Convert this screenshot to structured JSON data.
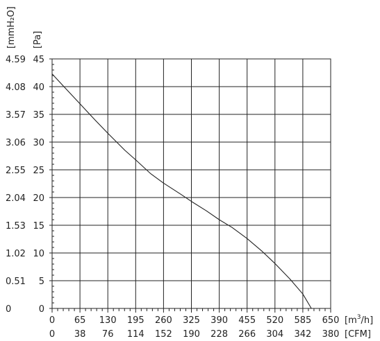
{
  "chart_data": {
    "type": "line",
    "title": "",
    "x_axis_primary": {
      "unit": "[m³/h]",
      "unit_base": "[m",
      "unit_sup": "3",
      "unit_tail": "/h]",
      "ticks": [
        "0",
        "65",
        "130",
        "195",
        "260",
        "325",
        "390",
        "455",
        "520",
        "585",
        "650"
      ],
      "range": [
        0,
        650
      ]
    },
    "x_axis_secondary": {
      "unit": "[CFM]",
      "ticks": [
        "0",
        "38",
        "76",
        "114",
        "152",
        "190",
        "228",
        "266",
        "304",
        "342",
        "380"
      ]
    },
    "y_axis_primary": {
      "unit": "[Pa]",
      "ticks": [
        "0",
        "5",
        "10",
        "15",
        "20",
        "25",
        "30",
        "35",
        "40",
        "45"
      ],
      "range": [
        0,
        45
      ]
    },
    "y_axis_secondary": {
      "unit": "[mmH₂O]",
      "ticks": [
        "0",
        "0.51",
        "1.02",
        "1.53",
        "2.04",
        "2.55",
        "3.06",
        "3.57",
        "4.08",
        "4.59"
      ]
    },
    "grid": true,
    "series": [
      {
        "color": "#222222",
        "x": [
          0,
          30,
          65,
          100,
          130,
          170,
          195,
          230,
          260,
          300,
          325,
          360,
          390,
          420,
          455,
          490,
          520,
          555,
          585,
          605
        ],
        "y": [
          42.3,
          39.8,
          36.9,
          34.0,
          31.6,
          28.5,
          26.8,
          24.3,
          22.6,
          20.6,
          19.3,
          17.6,
          16.0,
          14.6,
          12.6,
          10.3,
          8.1,
          5.3,
          2.6,
          0
        ]
      }
    ]
  }
}
